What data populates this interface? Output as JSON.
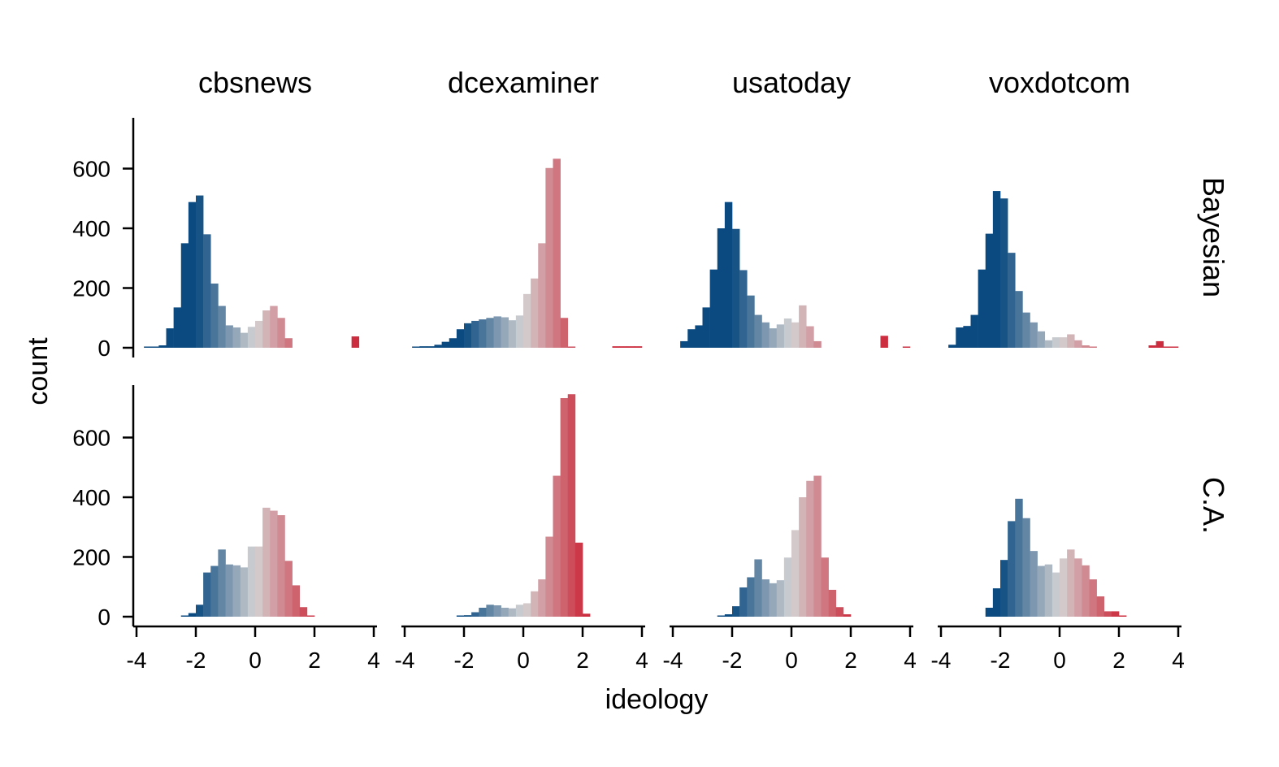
{
  "chart_data": {
    "type": "bar",
    "subtype": "faceted histogram",
    "xlabel": "ideology",
    "ylabel": "count",
    "xlim": [
      -4,
      4
    ],
    "ylim": [
      0,
      780
    ],
    "x_ticks": [
      "-4",
      "-2",
      "0",
      "2",
      "4"
    ],
    "y_ticks": [
      "0",
      "200",
      "400",
      "600"
    ],
    "columns": [
      "cbsnews",
      "dcexaminer",
      "usatoday",
      "voxdotcom"
    ],
    "rows": [
      "Bayesian",
      "C.A."
    ],
    "bin_width": 0.25,
    "color_scale": {
      "low": "#0b4a80",
      "mid": "#d3d3d3",
      "high": "#cc2e3f",
      "low_x": -2,
      "high_x": 2
    },
    "panels": [
      {
        "column": "cbsnews",
        "row": "Bayesian",
        "bins": [
          {
            "x": -3.625,
            "count": 1
          },
          {
            "x": -3.375,
            "count": 3
          },
          {
            "x": -3.125,
            "count": 8
          },
          {
            "x": -2.875,
            "count": 65
          },
          {
            "x": -2.625,
            "count": 135
          },
          {
            "x": -2.375,
            "count": 350
          },
          {
            "x": -2.125,
            "count": 488
          },
          {
            "x": -1.875,
            "count": 510
          },
          {
            "x": -1.625,
            "count": 380
          },
          {
            "x": -1.375,
            "count": 215
          },
          {
            "x": -1.125,
            "count": 140
          },
          {
            "x": -0.875,
            "count": 75
          },
          {
            "x": -0.625,
            "count": 68
          },
          {
            "x": -0.375,
            "count": 50
          },
          {
            "x": -0.125,
            "count": 70
          },
          {
            "x": 0.125,
            "count": 90
          },
          {
            "x": 0.375,
            "count": 125
          },
          {
            "x": 0.625,
            "count": 140
          },
          {
            "x": 0.875,
            "count": 100
          },
          {
            "x": 1.125,
            "count": 32
          },
          {
            "x": 3.375,
            "count": 38
          }
        ]
      },
      {
        "column": "dcexaminer",
        "row": "Bayesian",
        "bins": [
          {
            "x": -3.625,
            "count": 2
          },
          {
            "x": -3.375,
            "count": 5
          },
          {
            "x": -3.125,
            "count": 5
          },
          {
            "x": -2.875,
            "count": 10
          },
          {
            "x": -2.625,
            "count": 20
          },
          {
            "x": -2.375,
            "count": 32
          },
          {
            "x": -2.125,
            "count": 62
          },
          {
            "x": -1.875,
            "count": 82
          },
          {
            "x": -1.625,
            "count": 90
          },
          {
            "x": -1.375,
            "count": 95
          },
          {
            "x": -1.125,
            "count": 100
          },
          {
            "x": -0.875,
            "count": 105
          },
          {
            "x": -0.625,
            "count": 102
          },
          {
            "x": -0.375,
            "count": 92
          },
          {
            "x": -0.125,
            "count": 108
          },
          {
            "x": 0.125,
            "count": 180
          },
          {
            "x": 0.375,
            "count": 232
          },
          {
            "x": 0.625,
            "count": 350
          },
          {
            "x": 0.875,
            "count": 602
          },
          {
            "x": 1.125,
            "count": 633
          },
          {
            "x": 1.375,
            "count": 100
          },
          {
            "x": 1.625,
            "count": 2
          },
          {
            "x": 3.125,
            "count": 5
          },
          {
            "x": 3.375,
            "count": 5
          },
          {
            "x": 3.625,
            "count": 5
          },
          {
            "x": 3.875,
            "count": 5
          }
        ]
      },
      {
        "column": "usatoday",
        "row": "Bayesian",
        "bins": [
          {
            "x": -3.625,
            "count": 22
          },
          {
            "x": -3.375,
            "count": 62
          },
          {
            "x": -3.125,
            "count": 75
          },
          {
            "x": -2.875,
            "count": 135
          },
          {
            "x": -2.625,
            "count": 262
          },
          {
            "x": -2.375,
            "count": 400
          },
          {
            "x": -2.125,
            "count": 488
          },
          {
            "x": -1.875,
            "count": 398
          },
          {
            "x": -1.625,
            "count": 260
          },
          {
            "x": -1.375,
            "count": 175
          },
          {
            "x": -1.125,
            "count": 110
          },
          {
            "x": -0.875,
            "count": 85
          },
          {
            "x": -0.625,
            "count": 65
          },
          {
            "x": -0.375,
            "count": 78
          },
          {
            "x": -0.125,
            "count": 98
          },
          {
            "x": 0.125,
            "count": 85
          },
          {
            "x": 0.375,
            "count": 142
          },
          {
            "x": 0.625,
            "count": 72
          },
          {
            "x": 0.875,
            "count": 22
          },
          {
            "x": 3.125,
            "count": 40
          },
          {
            "x": 3.875,
            "count": 2
          }
        ]
      },
      {
        "column": "voxdotcom",
        "row": "Bayesian",
        "bins": [
          {
            "x": -3.625,
            "count": 10
          },
          {
            "x": -3.375,
            "count": 68
          },
          {
            "x": -3.125,
            "count": 73
          },
          {
            "x": -2.875,
            "count": 110
          },
          {
            "x": -2.625,
            "count": 262
          },
          {
            "x": -2.375,
            "count": 382
          },
          {
            "x": -2.125,
            "count": 525
          },
          {
            "x": -1.875,
            "count": 500
          },
          {
            "x": -1.625,
            "count": 318
          },
          {
            "x": -1.375,
            "count": 190
          },
          {
            "x": -1.125,
            "count": 118
          },
          {
            "x": -0.875,
            "count": 85
          },
          {
            "x": -0.625,
            "count": 55
          },
          {
            "x": -0.375,
            "count": 25
          },
          {
            "x": -0.125,
            "count": 35
          },
          {
            "x": 0.125,
            "count": 35
          },
          {
            "x": 0.375,
            "count": 45
          },
          {
            "x": 0.625,
            "count": 25
          },
          {
            "x": 0.875,
            "count": 8
          },
          {
            "x": 1.125,
            "count": 2
          },
          {
            "x": 3.125,
            "count": 8
          },
          {
            "x": 3.375,
            "count": 22
          },
          {
            "x": 3.625,
            "count": 4
          },
          {
            "x": 3.875,
            "count": 4
          }
        ]
      },
      {
        "column": "cbsnews",
        "row": "C.A.",
        "bins": [
          {
            "x": -2.375,
            "count": 4
          },
          {
            "x": -2.125,
            "count": 12
          },
          {
            "x": -1.875,
            "count": 40
          },
          {
            "x": -1.625,
            "count": 148
          },
          {
            "x": -1.375,
            "count": 170
          },
          {
            "x": -1.125,
            "count": 225
          },
          {
            "x": -0.875,
            "count": 175
          },
          {
            "x": -0.625,
            "count": 172
          },
          {
            "x": -0.375,
            "count": 165
          },
          {
            "x": -0.125,
            "count": 235
          },
          {
            "x": 0.125,
            "count": 235
          },
          {
            "x": 0.375,
            "count": 365
          },
          {
            "x": 0.625,
            "count": 355
          },
          {
            "x": 0.875,
            "count": 340
          },
          {
            "x": 1.125,
            "count": 187
          },
          {
            "x": 1.375,
            "count": 105
          },
          {
            "x": 1.625,
            "count": 32
          },
          {
            "x": 1.875,
            "count": 2
          }
        ]
      },
      {
        "column": "dcexaminer",
        "row": "C.A.",
        "bins": [
          {
            "x": -2.125,
            "count": 2
          },
          {
            "x": -1.875,
            "count": 5
          },
          {
            "x": -1.625,
            "count": 15
          },
          {
            "x": -1.375,
            "count": 30
          },
          {
            "x": -1.125,
            "count": 40
          },
          {
            "x": -0.875,
            "count": 38
          },
          {
            "x": -0.625,
            "count": 30
          },
          {
            "x": -0.375,
            "count": 28
          },
          {
            "x": -0.125,
            "count": 40
          },
          {
            "x": 0.125,
            "count": 45
          },
          {
            "x": 0.375,
            "count": 85
          },
          {
            "x": 0.625,
            "count": 125
          },
          {
            "x": 0.875,
            "count": 268
          },
          {
            "x": 1.125,
            "count": 472
          },
          {
            "x": 1.375,
            "count": 732
          },
          {
            "x": 1.625,
            "count": 745
          },
          {
            "x": 1.875,
            "count": 248
          },
          {
            "x": 2.125,
            "count": 10
          }
        ]
      },
      {
        "column": "usatoday",
        "row": "C.A.",
        "bins": [
          {
            "x": -2.375,
            "count": 2
          },
          {
            "x": -2.125,
            "count": 8
          },
          {
            "x": -1.875,
            "count": 35
          },
          {
            "x": -1.625,
            "count": 98
          },
          {
            "x": -1.375,
            "count": 132
          },
          {
            "x": -1.125,
            "count": 192
          },
          {
            "x": -0.875,
            "count": 125
          },
          {
            "x": -0.625,
            "count": 112
          },
          {
            "x": -0.375,
            "count": 122
          },
          {
            "x": -0.125,
            "count": 198
          },
          {
            "x": 0.125,
            "count": 290
          },
          {
            "x": 0.375,
            "count": 400
          },
          {
            "x": 0.625,
            "count": 455
          },
          {
            "x": 0.875,
            "count": 472
          },
          {
            "x": 1.125,
            "count": 198
          },
          {
            "x": 1.375,
            "count": 90
          },
          {
            "x": 1.625,
            "count": 32
          },
          {
            "x": 1.875,
            "count": 8
          }
        ]
      },
      {
        "column": "voxdotcom",
        "row": "C.A.",
        "bins": [
          {
            "x": -2.375,
            "count": 30
          },
          {
            "x": -2.125,
            "count": 95
          },
          {
            "x": -1.875,
            "count": 190
          },
          {
            "x": -1.625,
            "count": 320
          },
          {
            "x": -1.375,
            "count": 395
          },
          {
            "x": -1.125,
            "count": 330
          },
          {
            "x": -0.875,
            "count": 220
          },
          {
            "x": -0.625,
            "count": 170
          },
          {
            "x": -0.375,
            "count": 175
          },
          {
            "x": -0.125,
            "count": 148
          },
          {
            "x": 0.125,
            "count": 195
          },
          {
            "x": 0.375,
            "count": 225
          },
          {
            "x": 0.625,
            "count": 195
          },
          {
            "x": 0.875,
            "count": 172
          },
          {
            "x": 1.125,
            "count": 125
          },
          {
            "x": 1.375,
            "count": 68
          },
          {
            "x": 1.625,
            "count": 18
          },
          {
            "x": 1.875,
            "count": 18
          },
          {
            "x": 2.125,
            "count": 2
          }
        ]
      }
    ]
  }
}
